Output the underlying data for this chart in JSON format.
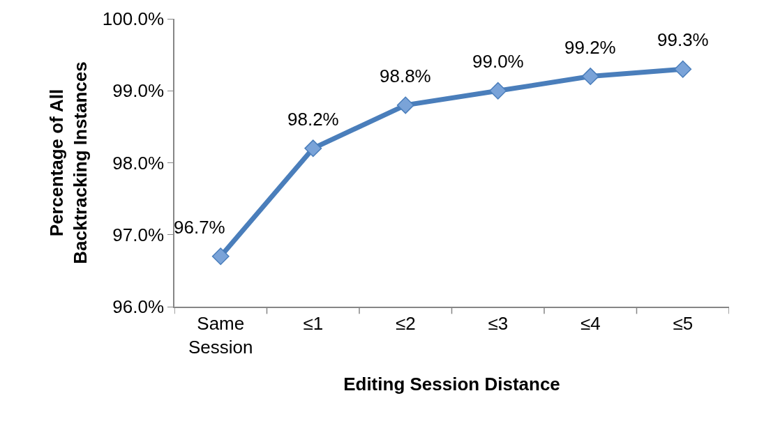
{
  "chart_data": {
    "type": "line",
    "xlabel": "Editing Session Distance",
    "ylabel": "Percentage of All\nBacktracking Instances",
    "categories": [
      "Same\nSession",
      "≤1",
      "≤2",
      "≤3",
      "≤4",
      "≤5"
    ],
    "series": [
      {
        "color": "#4a7ebb",
        "values": [
          96.7,
          98.2,
          98.8,
          99.0,
          99.2,
          99.3
        ],
        "value_labels": [
          "96.7%",
          "98.2%",
          "98.8%",
          "99.0%",
          "99.2%",
          "99.3%"
        ]
      }
    ],
    "ylim": [
      96.0,
      100.0
    ],
    "yticks": [
      {
        "value": 96,
        "label": "96.0%"
      },
      {
        "value": 97,
        "label": "97.0%"
      },
      {
        "value": 98,
        "label": "98.0%"
      },
      {
        "value": 99,
        "label": "99.0%"
      },
      {
        "value": 100,
        "label": "100.0%"
      }
    ],
    "legend": false,
    "marker": "diamond",
    "line_style": "solid"
  }
}
